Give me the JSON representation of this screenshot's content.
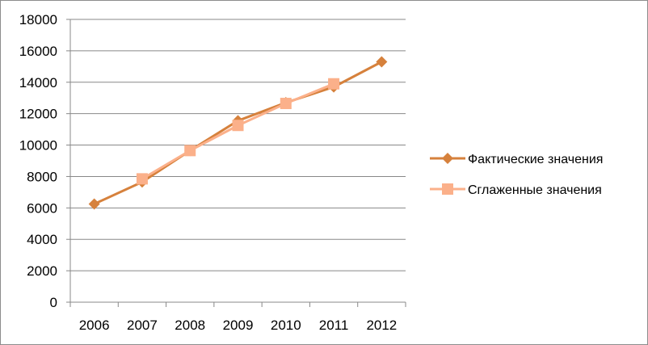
{
  "chart_data": {
    "type": "line",
    "title": "",
    "xlabel": "",
    "ylabel": "",
    "categories": [
      "2006",
      "2007",
      "2008",
      "2009",
      "2010",
      "2011",
      "2012"
    ],
    "ylim": [
      0,
      18000
    ],
    "y_ticks": [
      "0",
      "2000",
      "4000",
      "6000",
      "8000",
      "10000",
      "12000",
      "14000",
      "16000",
      "18000"
    ],
    "grid": true,
    "legend_position": "right",
    "series": [
      {
        "name": "Фактические значения",
        "color": "#d6813c",
        "marker": "diamond",
        "values": [
          6250,
          7650,
          9650,
          11550,
          12700,
          13700,
          15300
        ]
      },
      {
        "name": "Сглаженные значения",
        "color": "#fbb08a",
        "marker": "square",
        "values": [
          null,
          7850,
          9650,
          11250,
          12650,
          13900,
          null
        ]
      }
    ]
  }
}
